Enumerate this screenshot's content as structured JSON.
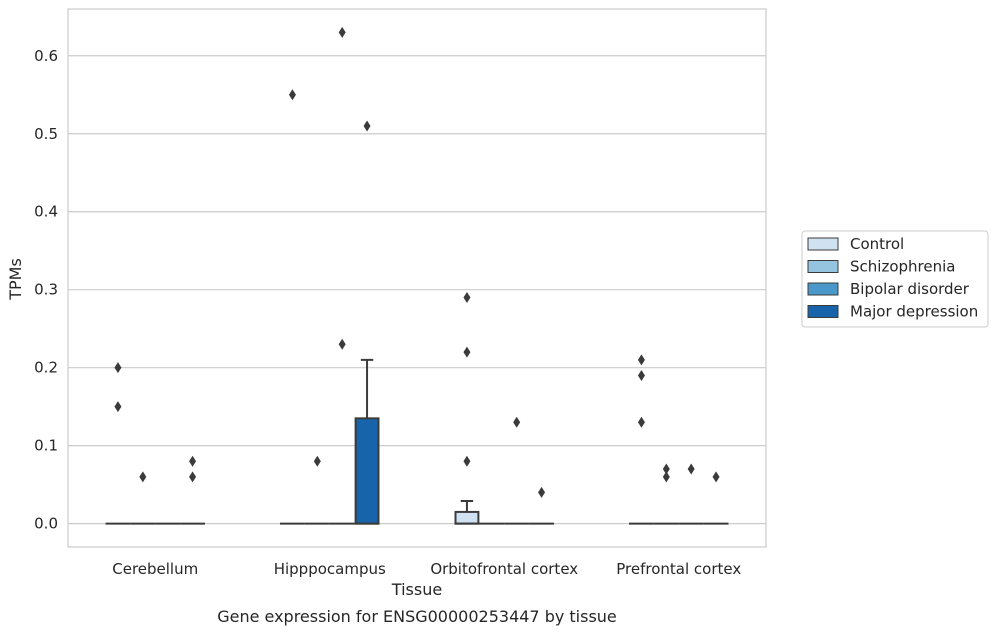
{
  "chart_data": {
    "type": "box",
    "title": "",
    "xlabel": "Tissue",
    "ylabel": "TPMs",
    "caption": "Gene expression for ENSG00000253447 by tissue",
    "ylim": [
      -0.03,
      0.66
    ],
    "yticks": [
      0.0,
      0.1,
      0.2,
      0.3,
      0.4,
      0.5,
      0.6
    ],
    "ytick_labels": [
      "0.0",
      "0.1",
      "0.2",
      "0.3",
      "0.4",
      "0.5",
      "0.6"
    ],
    "grid": "horizontal",
    "legend_position": "right",
    "categories": [
      "Cerebellum",
      "Hipppocampus",
      "Orbitofrontal cortex",
      "Prefrontal cortex"
    ],
    "series": [
      {
        "name": "Control",
        "color": "#d0e1f2",
        "boxes": [
          {
            "q1": 0,
            "median": 0,
            "q3": 0,
            "whisker_low": 0,
            "whisker_high": 0,
            "outliers": [
              0.2,
              0.15
            ]
          },
          {
            "q1": 0,
            "median": 0,
            "q3": 0,
            "whisker_low": 0,
            "whisker_high": 0,
            "outliers": [
              0.55
            ]
          },
          {
            "q1": 0,
            "median": 0,
            "q3": 0.015,
            "whisker_low": 0,
            "whisker_high": 0.029,
            "outliers": [
              0.29,
              0.22,
              0.08
            ]
          },
          {
            "q1": 0,
            "median": 0,
            "q3": 0,
            "whisker_low": 0,
            "whisker_high": 0,
            "outliers": [
              0.21,
              0.19,
              0.13
            ]
          }
        ]
      },
      {
        "name": "Schizophrenia",
        "color": "#94c4df",
        "boxes": [
          {
            "q1": 0,
            "median": 0,
            "q3": 0,
            "whisker_low": 0,
            "whisker_high": 0,
            "outliers": [
              0.06
            ]
          },
          {
            "q1": 0,
            "median": 0,
            "q3": 0,
            "whisker_low": 0,
            "whisker_high": 0,
            "outliers": [
              0.08
            ]
          },
          {
            "q1": 0,
            "median": 0,
            "q3": 0,
            "whisker_low": 0,
            "whisker_high": 0,
            "outliers": []
          },
          {
            "q1": 0,
            "median": 0,
            "q3": 0,
            "whisker_low": 0,
            "whisker_high": 0,
            "outliers": [
              0.07,
              0.06
            ]
          }
        ]
      },
      {
        "name": "Bipolar disorder",
        "color": "#4a98c9",
        "boxes": [
          {
            "q1": 0,
            "median": 0,
            "q3": 0,
            "whisker_low": 0,
            "whisker_high": 0,
            "outliers": []
          },
          {
            "q1": 0,
            "median": 0,
            "q3": 0,
            "whisker_low": 0,
            "whisker_high": 0,
            "outliers": [
              0.63,
              0.23
            ]
          },
          {
            "q1": 0,
            "median": 0,
            "q3": 0,
            "whisker_low": 0,
            "whisker_high": 0,
            "outliers": [
              0.13
            ]
          },
          {
            "q1": 0,
            "median": 0,
            "q3": 0,
            "whisker_low": 0,
            "whisker_high": 0,
            "outliers": [
              0.07
            ]
          }
        ]
      },
      {
        "name": "Major depression",
        "color": "#1764ab",
        "boxes": [
          {
            "q1": 0,
            "median": 0,
            "q3": 0,
            "whisker_low": 0,
            "whisker_high": 0,
            "outliers": [
              0.08,
              0.06
            ]
          },
          {
            "q1": 0,
            "median": 0,
            "q3": 0.135,
            "whisker_low": 0,
            "whisker_high": 0.21,
            "outliers": [
              0.51
            ]
          },
          {
            "q1": 0,
            "median": 0,
            "q3": 0,
            "whisker_low": 0,
            "whisker_high": 0,
            "outliers": [
              0.04
            ]
          },
          {
            "q1": 0,
            "median": 0,
            "q3": 0,
            "whisker_low": 0,
            "whisker_high": 0,
            "outliers": [
              0.06
            ]
          }
        ]
      }
    ]
  },
  "colors": {
    "grid": "#cccccc",
    "axis_frame": "#cccccc",
    "box_edge": "#3b3b3b",
    "text": "#262626"
  }
}
